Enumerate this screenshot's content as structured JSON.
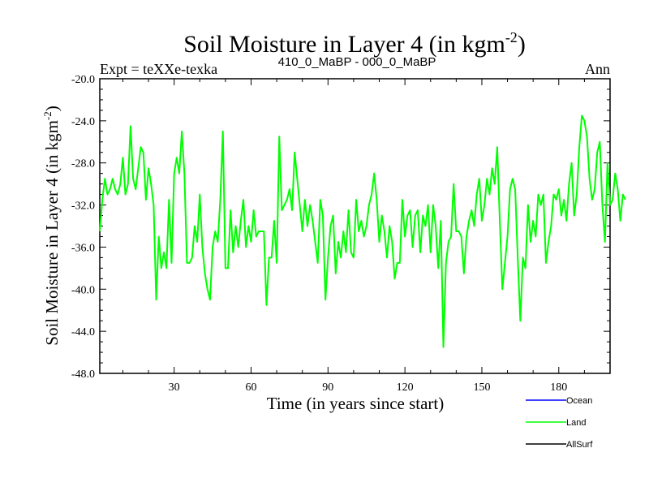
{
  "chart_data": {
    "type": "line",
    "title": "Soil Moisture in Layer 4 (in kgm",
    "title_superscript": "-2",
    "title_close": ")",
    "subtitle_left": "Expt = teXXe-texka",
    "subtitle_center": "410_0_MaBP - 000_0_MaBP",
    "subtitle_right": "Ann",
    "xlabel": "Time (in years since start)",
    "ylabel": "Soil Moisture in Layer 4 (in kgm",
    "ylabel_superscript": "-2",
    "ylabel_close": ")",
    "xlim": [
      1,
      200
    ],
    "ylim": [
      -48,
      -20
    ],
    "xticks": [
      30,
      60,
      90,
      120,
      150,
      180
    ],
    "xtick_labels": [
      "30",
      "60",
      "90",
      "120",
      "150",
      "180"
    ],
    "yticks": [
      -48,
      -44,
      -40,
      -36,
      -32,
      -28,
      -24,
      -20
    ],
    "ytick_labels": [
      "-48.0",
      "-44.0",
      "-40.0",
      "-36.0",
      "-32.0",
      "-28.0",
      "-24.0",
      "-20.0"
    ],
    "legend": [
      {
        "name": "Ocean",
        "color": "#0000ff"
      },
      {
        "name": "Land",
        "color": "#00ff00"
      },
      {
        "name": "AllSurf",
        "color": "#000000"
      }
    ],
    "series": [
      {
        "name": "Land",
        "color": "#00ff00",
        "x_start": 1,
        "values": [
          -34.5,
          -31.5,
          -29.5,
          -31.0,
          -30.5,
          -29.5,
          -30.5,
          -31.0,
          -30.0,
          -27.5,
          -31.0,
          -30.0,
          -24.5,
          -29.5,
          -30.5,
          -28.5,
          -26.5,
          -27.0,
          -31.5,
          -28.5,
          -30.0,
          -32.0,
          -41.0,
          -35.0,
          -38.0,
          -36.5,
          -38.0,
          -31.5,
          -37.5,
          -29.0,
          -27.5,
          -29.0,
          -25.0,
          -29.0,
          -37.5,
          -37.5,
          -37.0,
          -34.0,
          -35.5,
          -31.0,
          -36.0,
          -38.5,
          -40.0,
          -41.0,
          -36.0,
          -34.5,
          -35.5,
          -31.5,
          -25.0,
          -38.0,
          -38.0,
          -32.5,
          -36.5,
          -34.0,
          -36.0,
          -33.5,
          -31.5,
          -36.0,
          -34.0,
          -35.5,
          -32.5,
          -35.0,
          -34.5,
          -34.5,
          -34.5,
          -41.5,
          -37.0,
          -37.0,
          -33.5,
          -37.5,
          -25.5,
          -32.5,
          -32.0,
          -31.5,
          -30.5,
          -32.5,
          -27.0,
          -29.5,
          -32.0,
          -34.5,
          -31.5,
          -34.0,
          -32.0,
          -33.5,
          -35.5,
          -37.5,
          -31.5,
          -33.0,
          -41.0,
          -37.0,
          -34.0,
          -33.0,
          -38.5,
          -35.5,
          -37.0,
          -34.5,
          -36.5,
          -32.5,
          -36.5,
          -37.0,
          -31.5,
          -34.5,
          -33.5,
          -35.0,
          -34.0,
          -32.0,
          -31.0,
          -29.0,
          -31.5,
          -35.5,
          -33.0,
          -34.5,
          -37.0,
          -34.0,
          -35.5,
          -39.0,
          -37.5,
          -37.5,
          -31.5,
          -35.0,
          -33.0,
          -32.5,
          -36.0,
          -33.0,
          -32.5,
          -36.5,
          -33.0,
          -34.0,
          -32.0,
          -36.5,
          -32.0,
          -34.0,
          -38.0,
          -33.5,
          -45.5,
          -37.5,
          -35.5,
          -35.0,
          -30.0,
          -34.5,
          -34.5,
          -35.0,
          -38.5,
          -35.0,
          -33.5,
          -32.5,
          -34.0,
          -31.0,
          -29.5,
          -33.5,
          -32.0,
          -29.5,
          -31.0,
          -28.5,
          -30.0,
          -26.5,
          -33.5,
          -40.0,
          -37.5,
          -35.0,
          -30.5,
          -29.5,
          -30.5,
          -37.0,
          -43.0,
          -37.0,
          -38.0,
          -32.0,
          -35.5,
          -33.5,
          -35.0,
          -31.0,
          -32.0,
          -31.0,
          -37.5,
          -35.5,
          -34.0,
          -31.0,
          -31.5,
          -30.5,
          -33.0,
          -31.5,
          -33.5,
          -30.0,
          -28.0,
          -33.0,
          -31.0,
          -26.5,
          -23.5,
          -24.0,
          -25.5,
          -29.5,
          -31.5,
          -30.5,
          -27.0,
          -26.0,
          -32.0,
          -35.5,
          -28.0,
          -32.0,
          -31.5,
          -29.0,
          -30.5,
          -33.5,
          -31.0,
          -31.5
        ]
      }
    ]
  }
}
